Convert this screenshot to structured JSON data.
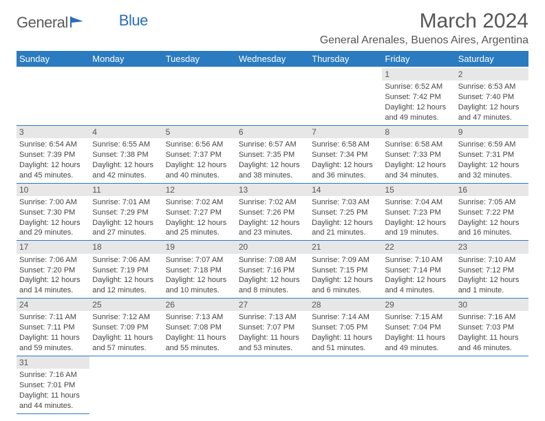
{
  "logo": {
    "text1": "General",
    "text2": "Blue"
  },
  "title": "March 2024",
  "location": "General Arenales, Buenos Aires, Argentina",
  "header_bg": "#2a7bbf",
  "header_fg": "#ffffff",
  "daynum_bg": "#e7e7e7",
  "body_bg": "#ffffff",
  "text_color": "#444444",
  "border_color": "#2a7bbf",
  "title_fontsize": 30,
  "location_fontsize": 16,
  "header_fontsize": 13,
  "body_fontsize": 11,
  "day_headers": [
    "Sunday",
    "Monday",
    "Tuesday",
    "Wednesday",
    "Thursday",
    "Friday",
    "Saturday"
  ],
  "weeks": [
    [
      null,
      null,
      null,
      null,
      null,
      {
        "n": "1",
        "sunrise": "6:52 AM",
        "sunset": "7:42 PM",
        "dl_h": "12",
        "dl_m": "49"
      },
      {
        "n": "2",
        "sunrise": "6:53 AM",
        "sunset": "7:40 PM",
        "dl_h": "12",
        "dl_m": "47"
      }
    ],
    [
      {
        "n": "3",
        "sunrise": "6:54 AM",
        "sunset": "7:39 PM",
        "dl_h": "12",
        "dl_m": "45"
      },
      {
        "n": "4",
        "sunrise": "6:55 AM",
        "sunset": "7:38 PM",
        "dl_h": "12",
        "dl_m": "42"
      },
      {
        "n": "5",
        "sunrise": "6:56 AM",
        "sunset": "7:37 PM",
        "dl_h": "12",
        "dl_m": "40"
      },
      {
        "n": "6",
        "sunrise": "6:57 AM",
        "sunset": "7:35 PM",
        "dl_h": "12",
        "dl_m": "38"
      },
      {
        "n": "7",
        "sunrise": "6:58 AM",
        "sunset": "7:34 PM",
        "dl_h": "12",
        "dl_m": "36"
      },
      {
        "n": "8",
        "sunrise": "6:58 AM",
        "sunset": "7:33 PM",
        "dl_h": "12",
        "dl_m": "34"
      },
      {
        "n": "9",
        "sunrise": "6:59 AM",
        "sunset": "7:31 PM",
        "dl_h": "12",
        "dl_m": "32"
      }
    ],
    [
      {
        "n": "10",
        "sunrise": "7:00 AM",
        "sunset": "7:30 PM",
        "dl_h": "12",
        "dl_m": "29"
      },
      {
        "n": "11",
        "sunrise": "7:01 AM",
        "sunset": "7:29 PM",
        "dl_h": "12",
        "dl_m": "27"
      },
      {
        "n": "12",
        "sunrise": "7:02 AM",
        "sunset": "7:27 PM",
        "dl_h": "12",
        "dl_m": "25"
      },
      {
        "n": "13",
        "sunrise": "7:02 AM",
        "sunset": "7:26 PM",
        "dl_h": "12",
        "dl_m": "23"
      },
      {
        "n": "14",
        "sunrise": "7:03 AM",
        "sunset": "7:25 PM",
        "dl_h": "12",
        "dl_m": "21"
      },
      {
        "n": "15",
        "sunrise": "7:04 AM",
        "sunset": "7:23 PM",
        "dl_h": "12",
        "dl_m": "19"
      },
      {
        "n": "16",
        "sunrise": "7:05 AM",
        "sunset": "7:22 PM",
        "dl_h": "12",
        "dl_m": "16"
      }
    ],
    [
      {
        "n": "17",
        "sunrise": "7:06 AM",
        "sunset": "7:20 PM",
        "dl_h": "12",
        "dl_m": "14"
      },
      {
        "n": "18",
        "sunrise": "7:06 AM",
        "sunset": "7:19 PM",
        "dl_h": "12",
        "dl_m": "12"
      },
      {
        "n": "19",
        "sunrise": "7:07 AM",
        "sunset": "7:18 PM",
        "dl_h": "12",
        "dl_m": "10"
      },
      {
        "n": "20",
        "sunrise": "7:08 AM",
        "sunset": "7:16 PM",
        "dl_h": "12",
        "dl_m": "8"
      },
      {
        "n": "21",
        "sunrise": "7:09 AM",
        "sunset": "7:15 PM",
        "dl_h": "12",
        "dl_m": "6"
      },
      {
        "n": "22",
        "sunrise": "7:10 AM",
        "sunset": "7:14 PM",
        "dl_h": "12",
        "dl_m": "4"
      },
      {
        "n": "23",
        "sunrise": "7:10 AM",
        "sunset": "7:12 PM",
        "dl_h": "12",
        "dl_m": "1"
      }
    ],
    [
      {
        "n": "24",
        "sunrise": "7:11 AM",
        "sunset": "7:11 PM",
        "dl_h": "11",
        "dl_m": "59"
      },
      {
        "n": "25",
        "sunrise": "7:12 AM",
        "sunset": "7:09 PM",
        "dl_h": "11",
        "dl_m": "57"
      },
      {
        "n": "26",
        "sunrise": "7:13 AM",
        "sunset": "7:08 PM",
        "dl_h": "11",
        "dl_m": "55"
      },
      {
        "n": "27",
        "sunrise": "7:13 AM",
        "sunset": "7:07 PM",
        "dl_h": "11",
        "dl_m": "53"
      },
      {
        "n": "28",
        "sunrise": "7:14 AM",
        "sunset": "7:05 PM",
        "dl_h": "11",
        "dl_m": "51"
      },
      {
        "n": "29",
        "sunrise": "7:15 AM",
        "sunset": "7:04 PM",
        "dl_h": "11",
        "dl_m": "49"
      },
      {
        "n": "30",
        "sunrise": "7:16 AM",
        "sunset": "7:03 PM",
        "dl_h": "11",
        "dl_m": "46"
      }
    ],
    [
      {
        "n": "31",
        "sunrise": "7:16 AM",
        "sunset": "7:01 PM",
        "dl_h": "11",
        "dl_m": "44"
      },
      null,
      null,
      null,
      null,
      null,
      null
    ]
  ],
  "labels": {
    "sunrise": "Sunrise:",
    "sunset": "Sunset:",
    "daylight": "Daylight:",
    "hours": "hours",
    "and": "and",
    "minutes": "minutes.",
    "minute": "minute."
  }
}
